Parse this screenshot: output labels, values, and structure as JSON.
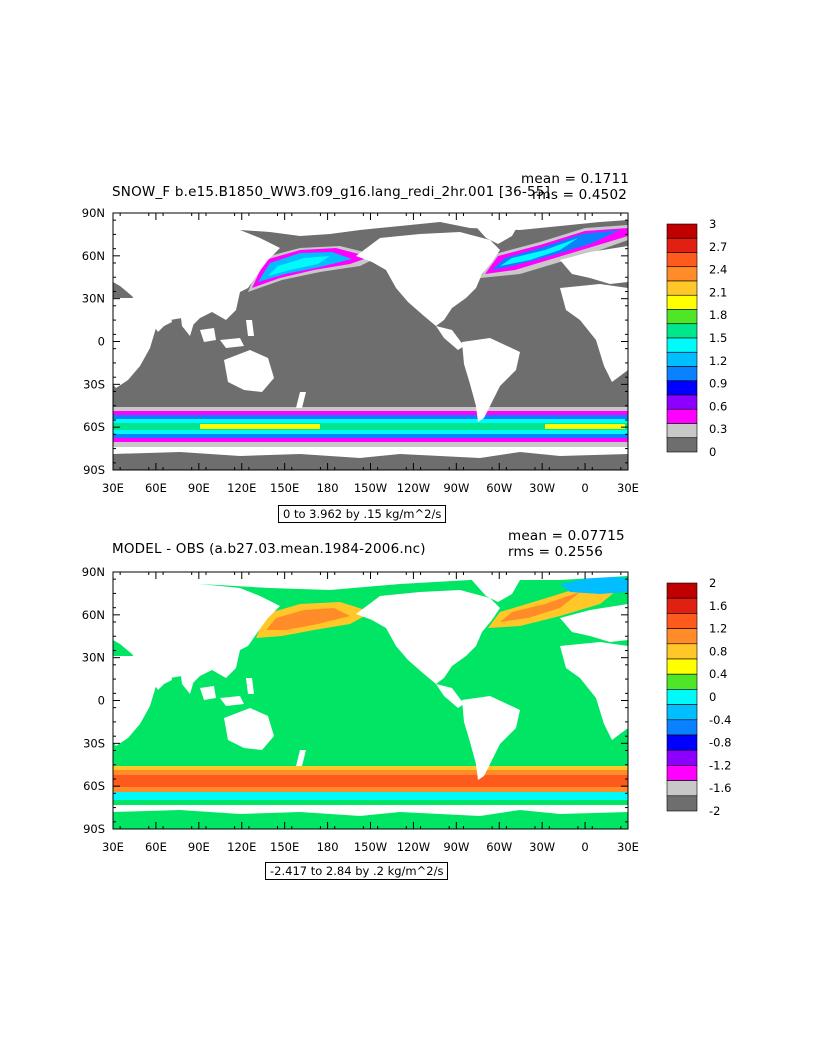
{
  "x_ticks": [
    "30E",
    "60E",
    "90E",
    "120E",
    "150E",
    "180",
    "150W",
    "120W",
    "90W",
    "60W",
    "30W",
    "0",
    "30E"
  ],
  "y_ticks": [
    "90N",
    "60N",
    "30N",
    "0",
    "30S",
    "60S",
    "90S"
  ],
  "colors": {
    "land": "#ffffff",
    "frame": "#000000"
  },
  "panels": [
    {
      "id": "snowf",
      "title": "SNOW_F b.e15.B1850_WW3.f09_g16.lang_redi_2hr.001 [36-55]",
      "mean_label": "mean = 0.1711",
      "rms_label": "rms = 0.4502",
      "units_label": "0 to 3.962 by .15 kg/m^2/s",
      "colorbar": {
        "labels": [
          "3",
          "2.7",
          "2.4",
          "2.1",
          "1.8",
          "1.5",
          "1.2",
          "0.9",
          "0.6",
          "0.3",
          "0"
        ],
        "colors": [
          "#c00000",
          "#e02010",
          "#ff5a1e",
          "#ff8c28",
          "#ffc828",
          "#ffff00",
          "#50e628",
          "#00e68c",
          "#00fafa",
          "#00beff",
          "#0a82ff",
          "#0000ff",
          "#8c00ff",
          "#ff00ff",
          "#c8c8c8",
          "#6e6e6e"
        ]
      },
      "ocean_color": "#6e6e6e"
    },
    {
      "id": "diff",
      "title": "MODEL - OBS (a.b27.03.mean.1984-2006.nc)",
      "mean_label": "mean = 0.07715",
      "rms_label": "rms = 0.2556",
      "units_label": "-2.417 to 2.84 by .2 kg/m^2/s",
      "colorbar": {
        "labels": [
          "2",
          "1.6",
          "1.2",
          "0.8",
          "0.4",
          "0",
          "-0.4",
          "-0.8",
          "-1.2",
          "-1.6",
          "-2"
        ],
        "colors": [
          "#c00000",
          "#e02010",
          "#ff5a1e",
          "#ff8c28",
          "#ffc828",
          "#ffff00",
          "#50e628",
          "#00fafa",
          "#00beff",
          "#0a82ff",
          "#0000ff",
          "#8c00ff",
          "#ff00ff",
          "#c8c8c8",
          "#6e6e6e"
        ]
      },
      "ocean_color": "#00e664"
    }
  ]
}
